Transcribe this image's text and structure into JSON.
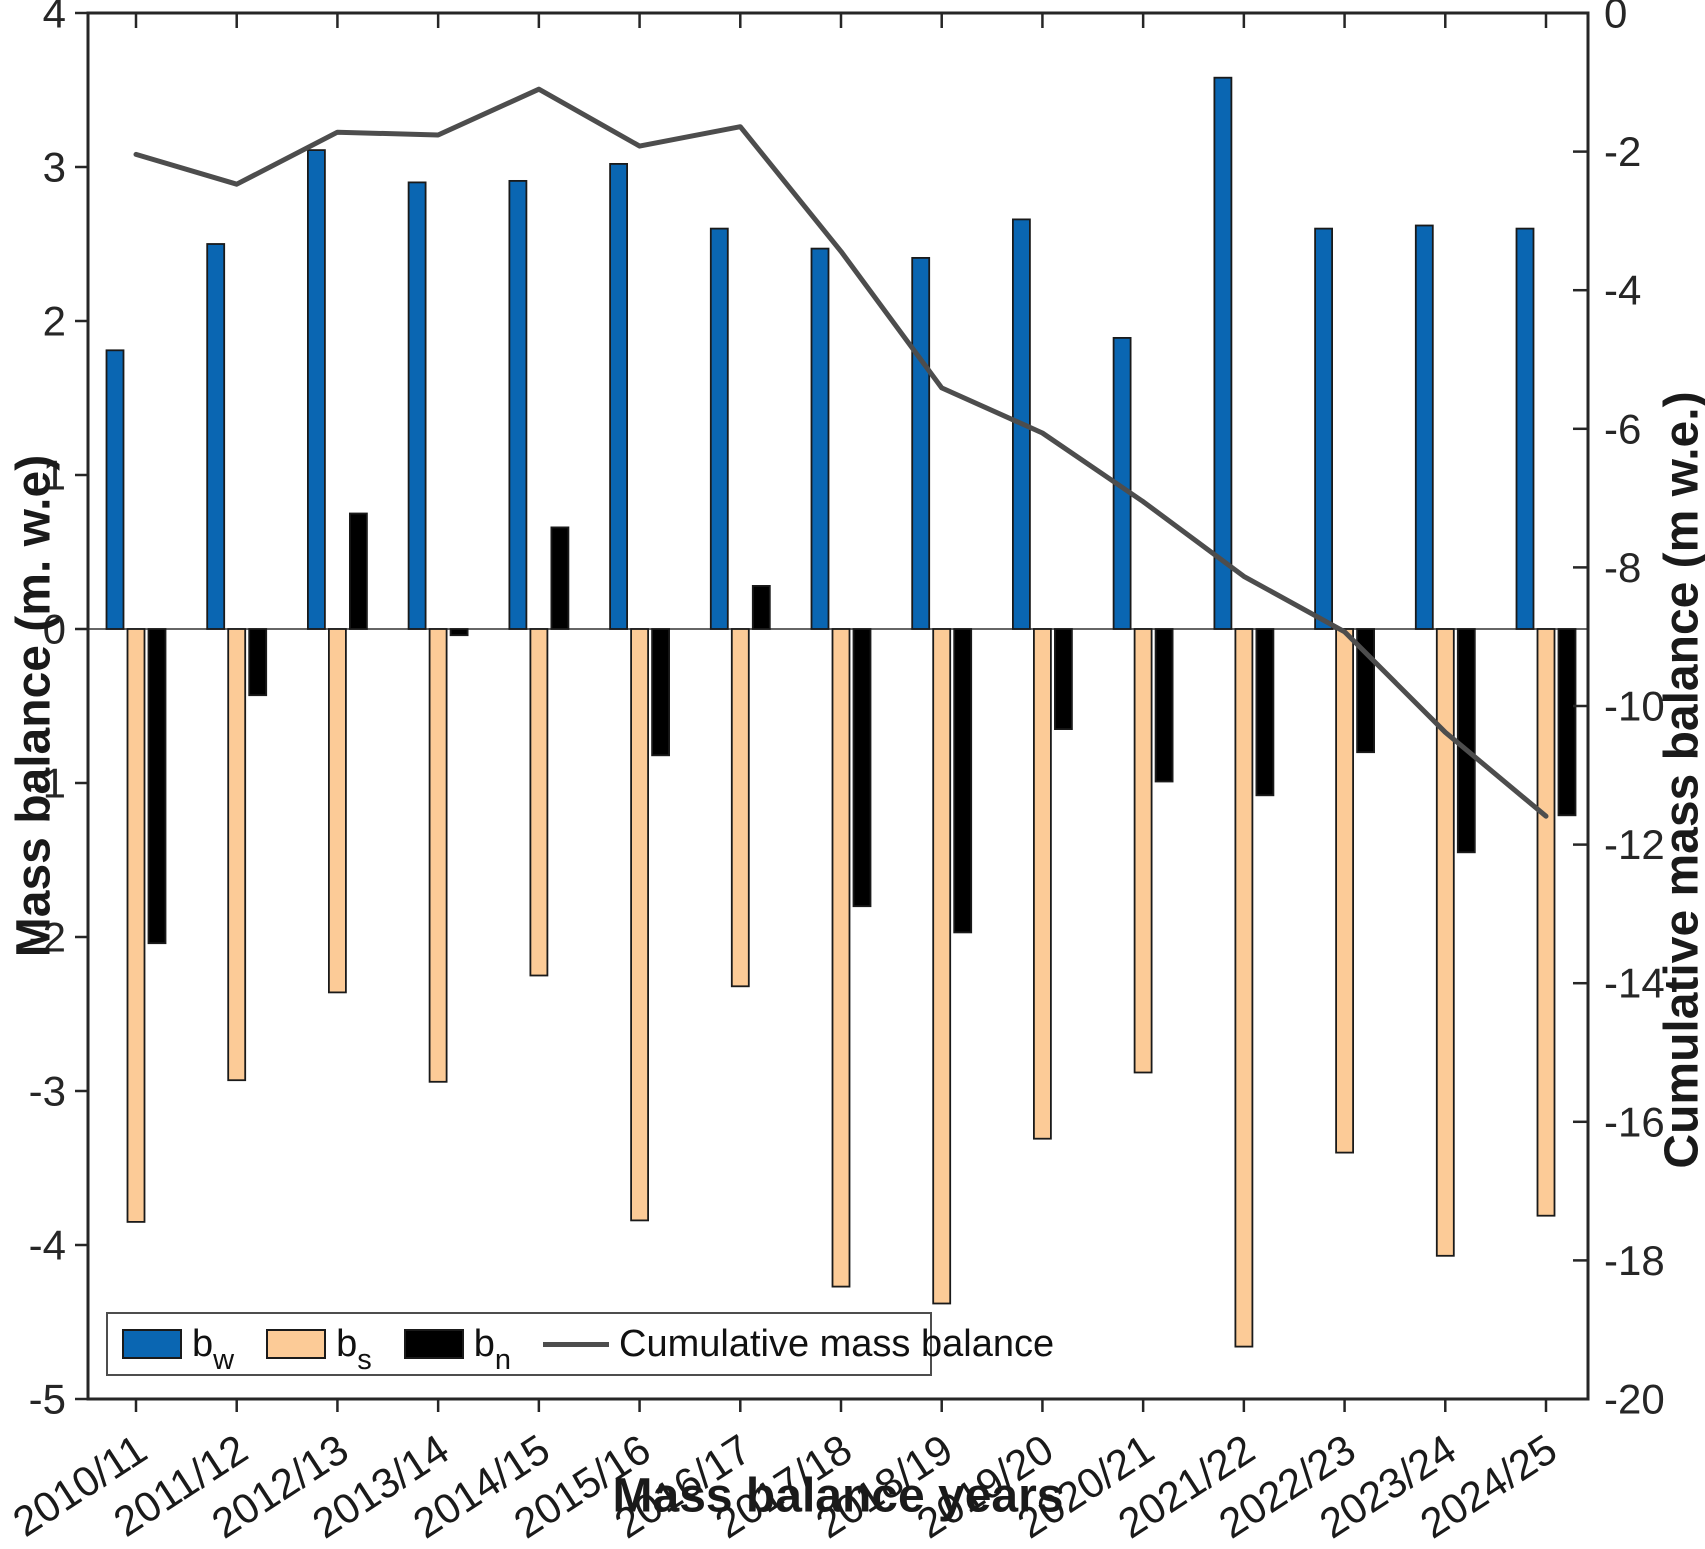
{
  "chart_data": {
    "type": "bar",
    "title": "",
    "xlabel": "Mass balance years",
    "ylabel_left": "Mass balance (m. w.e)",
    "ylabel_right": "Cumulative mass balance (m w.e.)",
    "ylim_left": [
      -5,
      4
    ],
    "ylim_right": [
      -20,
      0
    ],
    "grid": false,
    "legend_position": "bottom-left",
    "categories": [
      "2010/11",
      "2011/12",
      "2012/13",
      "2013/14",
      "2014/15",
      "2015/16",
      "2016/17",
      "2017/18",
      "2018/19",
      "2019/20",
      "2020/21",
      "2021/22",
      "2022/23",
      "2023/24",
      "2024/25"
    ],
    "left_ticks": [
      4,
      3,
      2,
      1,
      0,
      -1,
      -2,
      -3,
      -4,
      -5
    ],
    "right_ticks": [
      0,
      -2,
      -4,
      -6,
      -8,
      -10,
      -12,
      -14,
      -16,
      -18,
      -20
    ],
    "series": [
      {
        "name": "bw",
        "label": "b",
        "sub": "w",
        "color": "#0a66b2",
        "values": [
          1.81,
          2.5,
          3.11,
          2.9,
          2.91,
          3.02,
          2.6,
          2.47,
          2.41,
          2.66,
          1.89,
          3.58,
          2.6,
          2.62,
          2.6
        ]
      },
      {
        "name": "bs",
        "label": "b",
        "sub": "s",
        "color": "#fccb97",
        "values": [
          -3.85,
          -2.93,
          -2.36,
          -2.94,
          -2.25,
          -3.84,
          -2.32,
          -4.27,
          -4.38,
          -3.31,
          -2.88,
          -4.66,
          -3.4,
          -4.07,
          -3.81
        ]
      },
      {
        "name": "bn",
        "label": "b",
        "sub": "n",
        "color": "#000000",
        "values": [
          -2.04,
          -0.43,
          0.75,
          -0.04,
          0.66,
          -0.82,
          0.28,
          -1.8,
          -1.97,
          -0.65,
          -0.99,
          -1.08,
          -0.8,
          -1.45,
          -1.21
        ]
      }
    ],
    "line_series": {
      "name": "Cumulative mass balance",
      "color": "#4d4d4d",
      "axis": "right",
      "values": [
        -2.04,
        -2.47,
        -1.72,
        -1.76,
        -1.1,
        -1.92,
        -1.64,
        -3.44,
        -5.41,
        -6.06,
        -7.05,
        -8.13,
        -8.93,
        -10.38,
        -11.59
      ]
    }
  },
  "legend": {
    "items": [
      {
        "label": "b",
        "sub": "w"
      },
      {
        "label": "b",
        "sub": "s"
      },
      {
        "label": "b",
        "sub": "n"
      },
      {
        "label": "Cumulative mass balance",
        "sub": ""
      }
    ]
  }
}
